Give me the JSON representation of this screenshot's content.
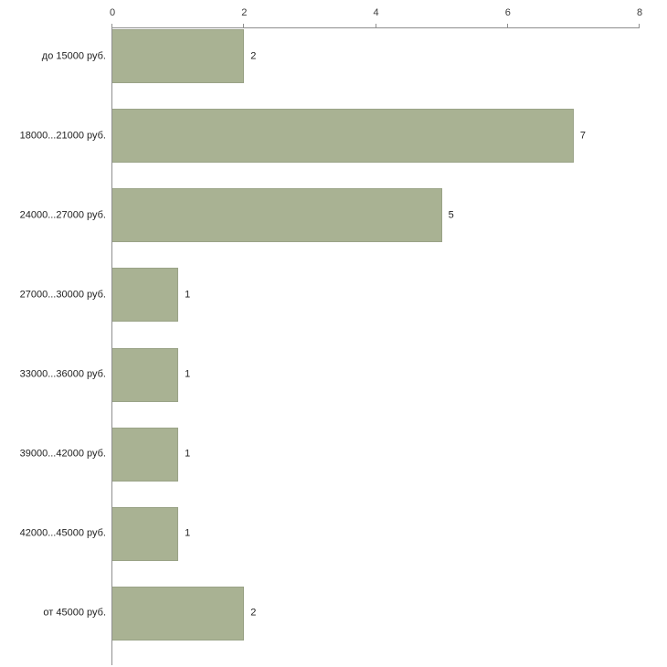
{
  "chart_data": {
    "type": "bar",
    "orientation": "horizontal",
    "title": "",
    "xlabel": "",
    "ylabel": "",
    "categories": [
      "до 15000 руб.",
      "18000...21000 руб.",
      "24000...27000 руб.",
      "27000...30000 руб.",
      "33000...36000 руб.",
      "39000...42000 руб.",
      "42000...45000 руб.",
      "от 45000 руб."
    ],
    "values": [
      2,
      7,
      5,
      1,
      1,
      1,
      1,
      2
    ],
    "xlim": [
      0,
      8
    ],
    "x_ticks": [
      "0",
      "2",
      "4",
      "6",
      "8"
    ],
    "x_tick_values": [
      0,
      2,
      4,
      6,
      8
    ],
    "grid": false,
    "legend": "none",
    "bar_color": "#a9b293",
    "bar_border_color": "#9aa387",
    "axis_color": "#8f8f8f",
    "text_color": "#222222"
  }
}
